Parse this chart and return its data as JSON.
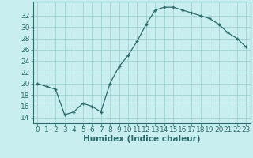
{
  "x": [
    0,
    1,
    2,
    3,
    4,
    5,
    6,
    7,
    8,
    9,
    10,
    11,
    12,
    13,
    14,
    15,
    16,
    17,
    18,
    19,
    20,
    21,
    22,
    23
  ],
  "y": [
    20,
    19.5,
    19,
    14.5,
    15,
    16.5,
    16,
    15,
    20,
    23,
    25,
    27.5,
    30.5,
    33,
    33.5,
    33.5,
    33,
    32.5,
    32,
    31.5,
    30.5,
    29,
    28,
    26.5
  ],
  "xlabel": "Humidex (Indice chaleur)",
  "xlim": [
    -0.5,
    23.5
  ],
  "ylim": [
    13,
    34.5
  ],
  "yticks": [
    14,
    16,
    18,
    20,
    22,
    24,
    26,
    28,
    30,
    32
  ],
  "xticks": [
    0,
    1,
    2,
    3,
    4,
    5,
    6,
    7,
    8,
    9,
    10,
    11,
    12,
    13,
    14,
    15,
    16,
    17,
    18,
    19,
    20,
    21,
    22,
    23
  ],
  "line_color": "#2e6b6b",
  "marker": "+",
  "bg_color": "#c8eef0",
  "grid_color": "#99cccc",
  "font_color": "#2e6b6b",
  "label_fontsize": 6.5,
  "xlabel_fontsize": 7.5
}
